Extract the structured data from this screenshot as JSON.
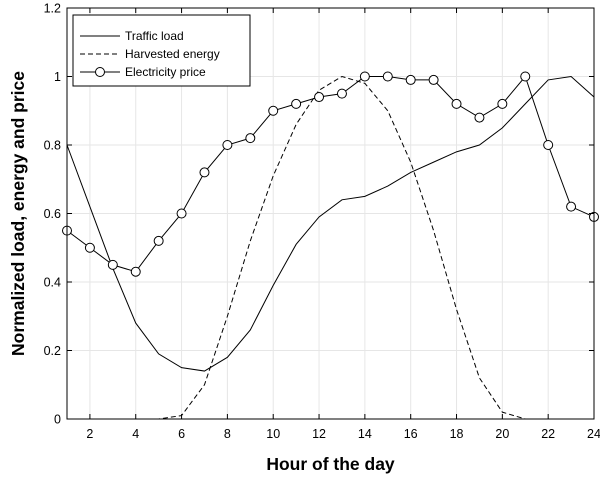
{
  "chart_data": {
    "type": "line",
    "title": "",
    "xlabel": "Hour of the day",
    "ylabel": "Normalized load, energy and price",
    "xlim": [
      1,
      24
    ],
    "ylim": [
      0,
      1.2
    ],
    "xticks": [
      2,
      4,
      6,
      8,
      10,
      12,
      14,
      16,
      18,
      20,
      22,
      24
    ],
    "yticks": [
      0,
      0.2,
      0.4,
      0.6,
      0.8,
      1,
      1.2
    ],
    "ytick_labels": [
      "0",
      "0.2",
      "0.4",
      "0.6",
      "0.8",
      "1",
      "1.2"
    ],
    "grid": true,
    "legend_position": "top-left",
    "x": [
      1,
      2,
      3,
      4,
      5,
      6,
      7,
      8,
      9,
      10,
      11,
      12,
      13,
      14,
      15,
      16,
      17,
      18,
      19,
      20,
      21,
      22,
      23,
      24
    ],
    "series": [
      {
        "name": "Traffic load",
        "style": "solid",
        "marker": "none",
        "values": [
          0.8,
          0.62,
          0.44,
          0.28,
          0.19,
          0.15,
          0.14,
          0.18,
          0.26,
          0.39,
          0.51,
          0.59,
          0.64,
          0.65,
          0.68,
          0.72,
          0.75,
          0.78,
          0.8,
          0.85,
          0.92,
          0.99,
          1.0,
          0.94
        ]
      },
      {
        "name": "Harvested energy",
        "style": "dashed",
        "marker": "none",
        "values": [
          0,
          0,
          0,
          0,
          0,
          0.01,
          0.1,
          0.3,
          0.52,
          0.71,
          0.86,
          0.96,
          1.0,
          0.98,
          0.9,
          0.75,
          0.55,
          0.32,
          0.12,
          0.02,
          0,
          0,
          0,
          0
        ]
      },
      {
        "name": "Electricity price",
        "style": "solid",
        "marker": "circle",
        "values": [
          0.55,
          0.5,
          0.45,
          0.43,
          0.52,
          0.6,
          0.72,
          0.8,
          0.82,
          0.9,
          0.92,
          0.94,
          0.95,
          1.0,
          1.0,
          0.99,
          0.99,
          0.92,
          0.88,
          0.92,
          1.0,
          0.8,
          0.62,
          0.59
        ]
      }
    ],
    "colors": {
      "line": "#000000",
      "grid": "#e6e6e6",
      "background": "#ffffff"
    }
  }
}
